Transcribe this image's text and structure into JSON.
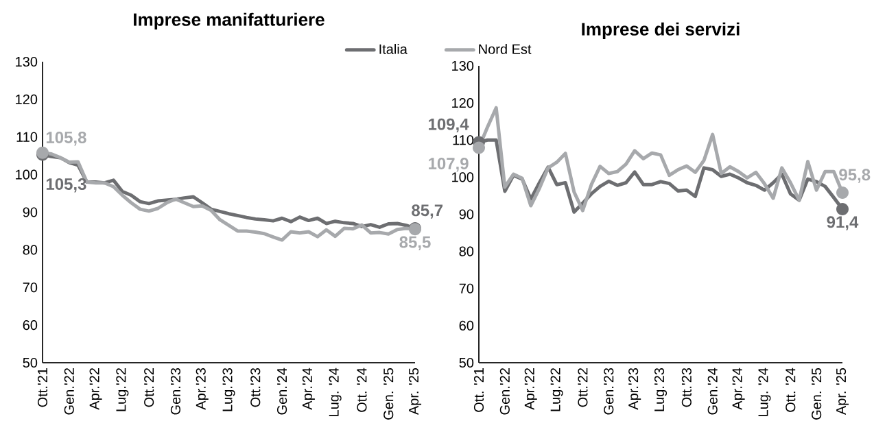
{
  "chart_data": [
    {
      "type": "line",
      "title": "Imprese manifatturiere",
      "categories": [
        "Ott.'21",
        null,
        null,
        "Gen.'22",
        null,
        null,
        "Apr.'22",
        null,
        null,
        "Lug.'22",
        null,
        null,
        "Ott.'22",
        null,
        null,
        "Gen.'23",
        null,
        null,
        "Apr.'23",
        null,
        null,
        "Lug.'23",
        null,
        null,
        "Ott.'23",
        null,
        null,
        "Gen.'24",
        null,
        null,
        "Apr.'24",
        null,
        null,
        "Lug. '24",
        null,
        null,
        "Ott. '24",
        null,
        null,
        "Gen. '25",
        null,
        null,
        "Apr. '25"
      ],
      "series": [
        {
          "name": "Italia",
          "color": "#6d6e71",
          "values": [
            105.3,
            104.8,
            104.5,
            103.2,
            102.5,
            98,
            98,
            97.8,
            98.5,
            95.5,
            94.5,
            92.8,
            92.3,
            93,
            93.2,
            93.4,
            93.8,
            94.1,
            92.5,
            90.8,
            90.2,
            89.6,
            89.1,
            88.6,
            88.2,
            88,
            87.7,
            88.4,
            87.5,
            88.7,
            87.8,
            88.4,
            87,
            87.6,
            87.2,
            87,
            86.2,
            86.7,
            86,
            86.9,
            87,
            86.5,
            85.7
          ],
          "value_labels": [
            "105,3",
            null,
            null,
            null,
            null,
            null,
            null,
            null,
            null,
            null,
            null,
            null,
            null,
            null,
            null,
            null,
            null,
            null,
            null,
            null,
            null,
            null,
            null,
            null,
            null,
            null,
            null,
            null,
            null,
            null,
            null,
            null,
            null,
            null,
            null,
            null,
            null,
            null,
            null,
            null,
            null,
            null,
            "85,7"
          ]
        },
        {
          "name": "Nord Est",
          "color": "#a7a9ac",
          "values": [
            105.8,
            105.5,
            104.5,
            103.3,
            103.4,
            98,
            97.8,
            97.8,
            96.8,
            94.5,
            92.5,
            90.8,
            90.3,
            91,
            92.5,
            93.5,
            92.5,
            91.5,
            91.7,
            90.5,
            88,
            86.5,
            85,
            85,
            84.7,
            84.3,
            83.4,
            82.6,
            84.8,
            84.5,
            84.8,
            83.5,
            85.3,
            83.6,
            85.7,
            85.6,
            86.6,
            84.5,
            84.6,
            84.2,
            85.4,
            85.7,
            85.5
          ],
          "value_labels": [
            "105,8",
            null,
            null,
            null,
            null,
            null,
            null,
            null,
            null,
            null,
            null,
            null,
            null,
            null,
            null,
            null,
            null,
            null,
            null,
            null,
            null,
            null,
            null,
            null,
            null,
            null,
            null,
            null,
            null,
            null,
            null,
            null,
            null,
            null,
            null,
            null,
            null,
            null,
            null,
            null,
            null,
            null,
            "85,5"
          ]
        }
      ],
      "ylim": [
        50,
        130
      ],
      "yticks": [
        50,
        60,
        70,
        80,
        90,
        100,
        110,
        120,
        130
      ],
      "grid": false,
      "legend": "top right"
    },
    {
      "type": "line",
      "title": "Imprese dei servizi",
      "categories": [
        "Ott. '21",
        null,
        null,
        "Gen.'22",
        null,
        null,
        "Apr.'22",
        null,
        null,
        "Lug.'22",
        null,
        null,
        "Ott.'22",
        null,
        null,
        "Gen.'23",
        null,
        null,
        "Apr.'23",
        null,
        null,
        "Lug.'23",
        null,
        null,
        "Ott.'23",
        null,
        null,
        "Gen.'24",
        null,
        null,
        "Apr.'24",
        null,
        null,
        "Lug. '24",
        null,
        null,
        "Ott. '24",
        null,
        null,
        "Gen. '25",
        null,
        null,
        "Apr. '25"
      ],
      "series": [
        {
          "color": "#6d6e71",
          "values": [
            109.4,
            110,
            110,
            96.2,
            100.5,
            99.5,
            94.1,
            98.5,
            102.7,
            98,
            98.5,
            90.6,
            93,
            95.5,
            97.5,
            98.9,
            97.8,
            98.5,
            101.4,
            98,
            98,
            98.8,
            98.3,
            96.3,
            96.5,
            94.8,
            102.5,
            102,
            100.2,
            100.8,
            99.8,
            98.5,
            97.8,
            96.5,
            98.5,
            100.8,
            95.5,
            93.8,
            99.5,
            98.8,
            97.5,
            94.5,
            91.4
          ],
          "value_labels": [
            "109,4",
            null,
            null,
            null,
            null,
            null,
            null,
            null,
            null,
            null,
            null,
            null,
            null,
            null,
            null,
            null,
            null,
            null,
            null,
            null,
            null,
            null,
            null,
            null,
            null,
            null,
            null,
            null,
            null,
            null,
            null,
            null,
            null,
            null,
            null,
            null,
            null,
            null,
            null,
            null,
            null,
            null,
            "91,4"
          ]
        },
        {
          "color": "#a7a9ac",
          "values": [
            107.9,
            113.5,
            118.7,
            97.3,
            100.8,
            99.7,
            92.3,
            97,
            102.5,
            104,
            106.4,
            96,
            91,
            98,
            102.9,
            101,
            101.5,
            103.5,
            107.1,
            105,
            106.5,
            106,
            100.5,
            102,
            103,
            101.3,
            104.5,
            111.5,
            101,
            102.8,
            101.5,
            99.8,
            101.3,
            98.2,
            94.3,
            102.5,
            98.5,
            93.8,
            104.2,
            96.5,
            101.5,
            101.5,
            95.8
          ],
          "value_labels": [
            "107,9",
            null,
            null,
            null,
            null,
            null,
            null,
            null,
            null,
            null,
            null,
            null,
            null,
            null,
            null,
            null,
            null,
            null,
            null,
            null,
            null,
            null,
            null,
            null,
            null,
            null,
            null,
            null,
            null,
            null,
            null,
            null,
            null,
            null,
            null,
            null,
            null,
            null,
            null,
            null,
            null,
            null,
            "95,8"
          ]
        }
      ],
      "ylim": [
        50,
        130
      ],
      "yticks": [
        50,
        60,
        70,
        80,
        90,
        100,
        110,
        120,
        130
      ],
      "grid": false,
      "legend": false
    }
  ]
}
